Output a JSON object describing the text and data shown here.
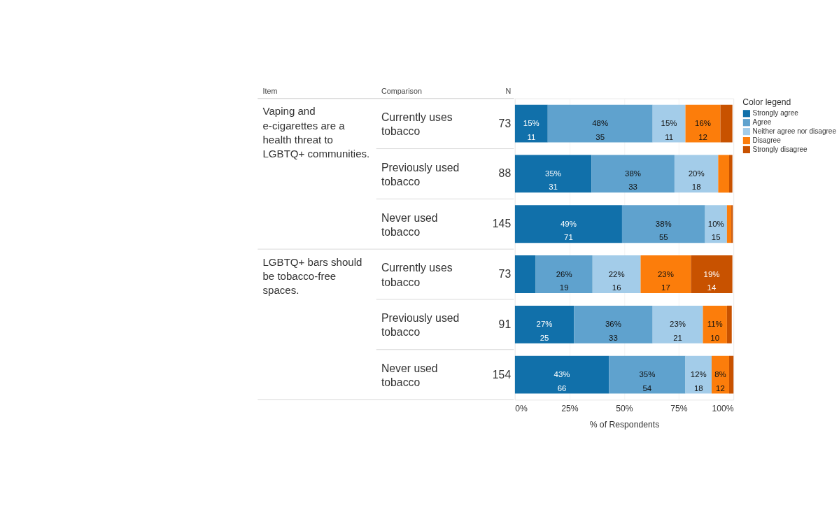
{
  "chart_data": {
    "type": "bar",
    "orientation": "horizontal",
    "stacked": true,
    "xlabel": "% of Respondents",
    "legend_title": "Color legend",
    "legend": "top right",
    "grid": "x",
    "categories": [
      "Currently uses tobacco",
      "Previously used tobacco",
      "Never used tobacco",
      "Currently uses tobacco",
      "Previously used tobacco",
      "Never used tobacco"
    ],
    "xlim": [
      0,
      100
    ],
    "xticks": [
      {
        "value": 0,
        "label": "0%"
      },
      {
        "value": 25,
        "label": "25%"
      },
      {
        "value": 50,
        "label": "50%"
      },
      {
        "value": 75,
        "label": "75%"
      },
      {
        "value": 100,
        "label": "100%"
      }
    ],
    "series": [
      {
        "name": "Strongly agree",
        "color": "#1170aa",
        "values": [
          15,
          35,
          49,
          9.5,
          27,
          43
        ],
        "value_labels": [
          "15%\n11",
          "35%\n31",
          "49%\n71",
          null,
          "27%\n25",
          "43%\n66"
        ]
      },
      {
        "name": "Agree",
        "color": "#5fa2ce",
        "values": [
          48,
          38,
          38,
          26,
          36,
          35
        ],
        "value_labels": [
          "48%\n35",
          "38%\n33",
          "38%\n55",
          "26%\n19",
          "36%\n33",
          "35%\n54"
        ]
      },
      {
        "name": "Neither agree nor disagree",
        "color": "#a3cce9",
        "values": [
          15,
          20,
          10,
          22,
          23,
          12
        ],
        "value_labels": [
          "15%\n11",
          "20%\n18",
          "10%\n15",
          "22%\n16",
          "23%\n21",
          "12%\n18"
        ]
      },
      {
        "name": "Disagree",
        "color": "#fc7d0b",
        "values": [
          16,
          5,
          2,
          23,
          11,
          8
        ],
        "value_labels": [
          "16%\n12",
          null,
          null,
          "23%\n17",
          "11%\n10",
          "8%\n12"
        ]
      },
      {
        "name": "Strongly disagree",
        "color": "#c85200",
        "values": [
          5.5,
          1.5,
          0.7,
          19,
          2.2,
          2
        ],
        "value_labels": [
          null,
          null,
          null,
          "19%\n14",
          null,
          null
        ]
      }
    ],
    "annotations": [
      "Item",
      "Comparison",
      "N",
      "Vaping and e-cigarettes are a health threat to LGBTQ+ communities.",
      "LGBTQ+ bars should be tobacco-free spaces.",
      "73",
      "88",
      "145",
      "73",
      "91",
      "154"
    ]
  }
}
